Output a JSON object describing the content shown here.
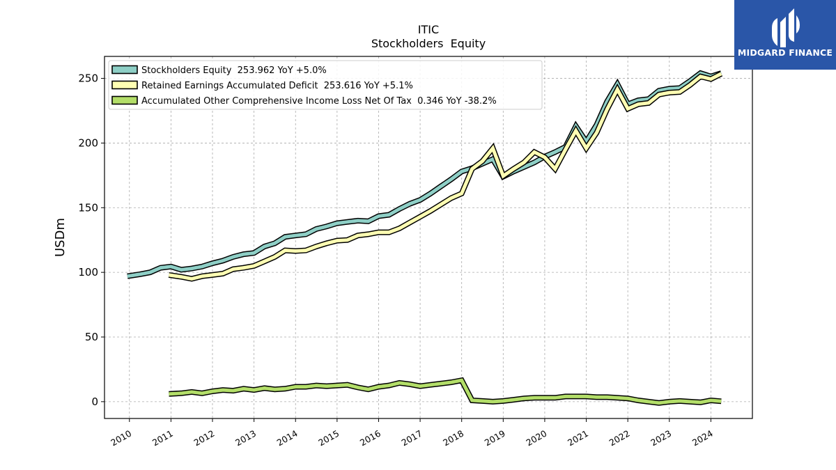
{
  "logo": {
    "text": "MIDGARD FINANCE",
    "icon": "midgard-logo-icon",
    "bg_color": "#2a56a8"
  },
  "chart_data": {
    "type": "line",
    "title": "ITIC",
    "subtitle": "Stockholders  Equity",
    "xlabel": "",
    "ylabel": "USDm",
    "xlim": [
      2009.4,
      2025.0
    ],
    "ylim": [
      -13,
      267
    ],
    "yticks": [
      0,
      50,
      100,
      150,
      200,
      250
    ],
    "xticks": [
      2010,
      2011,
      2012,
      2013,
      2014,
      2015,
      2016,
      2017,
      2018,
      2019,
      2020,
      2021,
      2022,
      2023,
      2024
    ],
    "grid": true,
    "legend_position": "top-left",
    "series": [
      {
        "name": "Stockholders Equity  253.962 YoY +5.0%",
        "color": "#8ecfc6",
        "x": [
          2009.95,
          2010.25,
          2010.5,
          2010.75,
          2011.0,
          2011.25,
          2011.5,
          2011.75,
          2012.0,
          2012.25,
          2012.5,
          2012.75,
          2013.0,
          2013.25,
          2013.5,
          2013.75,
          2014.0,
          2014.25,
          2014.5,
          2014.75,
          2015.0,
          2015.25,
          2015.5,
          2015.75,
          2016.0,
          2016.25,
          2016.5,
          2016.75,
          2017.0,
          2017.25,
          2017.5,
          2017.75,
          2018.0,
          2018.25,
          2018.5,
          2018.75,
          2019.0,
          2019.25,
          2019.5,
          2019.75,
          2020.0,
          2020.25,
          2020.5,
          2020.75,
          2021.0,
          2021.25,
          2021.5,
          2021.75,
          2022.0,
          2022.25,
          2022.5,
          2022.75,
          2023.0,
          2023.25,
          2023.5,
          2023.75,
          2024.0,
          2024.25
        ],
        "y": [
          97,
          98.5,
          100,
          103.5,
          104.5,
          102,
          103,
          104.5,
          107,
          109,
          112,
          114,
          115,
          120,
          122.5,
          127.5,
          128.5,
          129.5,
          133.5,
          135.5,
          138,
          139,
          140,
          139.5,
          143.5,
          144.5,
          149,
          153,
          156,
          161,
          166.5,
          172,
          178,
          180.5,
          184,
          187.5,
          174,
          178,
          181.5,
          185,
          189.5,
          193,
          197,
          213,
          201,
          214,
          232,
          245.5,
          230,
          233,
          234,
          240.5,
          242,
          242.5,
          248,
          254,
          251.5,
          254
        ]
      },
      {
        "name": "Retained Earnings Accumulated Deficit  253.616 YoY +5.1%",
        "color": "#ffffb3",
        "x": [
          2010.95,
          2011.25,
          2011.5,
          2011.75,
          2012.0,
          2012.25,
          2012.5,
          2012.75,
          2013.0,
          2013.25,
          2013.5,
          2013.75,
          2014.0,
          2014.25,
          2014.5,
          2014.75,
          2015.0,
          2015.25,
          2015.5,
          2015.75,
          2016.0,
          2016.25,
          2016.5,
          2016.75,
          2017.0,
          2017.25,
          2017.5,
          2017.75,
          2018.0,
          2018.25,
          2018.5,
          2018.75,
          2019.0,
          2019.25,
          2019.5,
          2019.75,
          2020.0,
          2020.25,
          2020.5,
          2020.75,
          2021.0,
          2021.25,
          2021.5,
          2021.75,
          2022.0,
          2022.25,
          2022.5,
          2022.75,
          2023.0,
          2023.25,
          2023.5,
          2023.75,
          2024.0,
          2024.25
        ],
        "y": [
          98,
          96.5,
          95,
          97,
          98,
          99,
          102.5,
          103.5,
          105,
          108.5,
          112,
          117,
          116.5,
          117,
          120,
          122.5,
          124.5,
          125,
          128.5,
          129.5,
          131,
          131,
          134,
          138.5,
          143,
          147.5,
          152.5,
          157.5,
          161,
          180,
          186,
          196,
          174.5,
          180,
          185,
          193,
          189,
          180,
          195,
          209.5,
          196,
          208,
          226,
          241.5,
          226.5,
          230,
          231,
          237.5,
          239,
          239.5,
          245,
          251.5,
          249.5,
          253.6
        ]
      },
      {
        "name": "Accumulated Other Comprehensive Income Loss Net Of Tax  0.346 YoY -38.2%",
        "color": "#b3de69",
        "x": [
          2010.95,
          2011.25,
          2011.5,
          2011.75,
          2012.0,
          2012.25,
          2012.5,
          2012.75,
          2013.0,
          2013.25,
          2013.5,
          2013.75,
          2014.0,
          2014.25,
          2014.5,
          2014.75,
          2015.0,
          2015.25,
          2015.5,
          2015.75,
          2016.0,
          2016.25,
          2016.5,
          2016.75,
          2017.0,
          2017.25,
          2017.5,
          2017.75,
          2018.0,
          2018.25,
          2018.5,
          2018.75,
          2019.0,
          2019.25,
          2019.5,
          2019.75,
          2020.0,
          2020.25,
          2020.5,
          2020.75,
          2021.0,
          2021.25,
          2021.5,
          2021.75,
          2022.0,
          2022.25,
          2022.5,
          2022.75,
          2023.0,
          2023.25,
          2023.5,
          2023.75,
          2024.0,
          2024.25
        ],
        "y": [
          6,
          6.5,
          7.5,
          6.5,
          8,
          9,
          8.5,
          10,
          9,
          10.5,
          9.5,
          10,
          11.5,
          11.5,
          12.5,
          12,
          12.5,
          13,
          11,
          9.5,
          11.5,
          12.5,
          14.5,
          13.5,
          12,
          13,
          14,
          15,
          16.5,
          1,
          0.5,
          0,
          0.5,
          1.5,
          2.5,
          3,
          3,
          3,
          4,
          4,
          4,
          3.5,
          3.5,
          3,
          2.5,
          1,
          0,
          -1,
          0,
          0.5,
          0,
          -0.5,
          1,
          0.3
        ]
      }
    ]
  }
}
